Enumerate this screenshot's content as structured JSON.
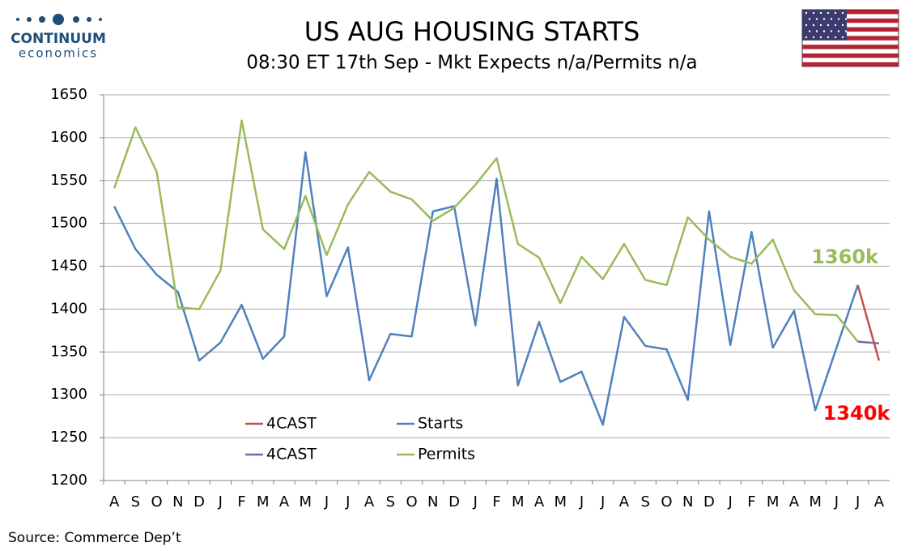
{
  "logo": {
    "name": "CONTINUUM",
    "tagline": "economics"
  },
  "chart_data": {
    "type": "line",
    "title": "US AUG HOUSING STARTS",
    "subtitle": "08:30 ET 17th Sep - Mkt Expects n/a/Permits n/a",
    "source": "Source: Commerce Dep’t",
    "categories": [
      "A",
      "S",
      "O",
      "N",
      "D",
      "J",
      "F",
      "M",
      "A",
      "M",
      "J",
      "J",
      "A",
      "S",
      "O",
      "N",
      "D",
      "J",
      "F",
      "M",
      "A",
      "M",
      "J",
      "J",
      "A",
      "S",
      "O",
      "N",
      "D",
      "J",
      "F",
      "M",
      "A",
      "M",
      "J",
      "J",
      "A"
    ],
    "series": [
      {
        "name": "Starts",
        "color": "#4f81bd",
        "values": [
          1520,
          1470,
          1440,
          1420,
          1340,
          1361,
          1405,
          1342,
          1368,
          1583,
          1415,
          1472,
          1317,
          1371,
          1368,
          1514,
          1520,
          1381,
          1552,
          1311,
          1385,
          1315,
          1327,
          1265,
          1391,
          1357,
          1353,
          1294,
          1514,
          1358,
          1490,
          1355,
          1398,
          1282,
          1355,
          1428,
          null
        ]
      },
      {
        "name": "Permits",
        "color": "#9bbb59",
        "values": [
          1541,
          1612,
          1560,
          1402,
          1400,
          1445,
          1620,
          1493,
          1470,
          1532,
          1463,
          1522,
          1560,
          1537,
          1528,
          1503,
          1518,
          1545,
          1576,
          1476,
          1460,
          1407,
          1461,
          1435,
          1476,
          1434,
          1428,
          1507,
          1481,
          1461,
          1453,
          1481,
          1422,
          1394,
          1393,
          1362,
          null
        ]
      },
      {
        "name": "4CAST",
        "color": "#c0504d",
        "values": [
          null,
          null,
          null,
          null,
          null,
          null,
          null,
          null,
          null,
          null,
          null,
          null,
          null,
          null,
          null,
          null,
          null,
          null,
          null,
          null,
          null,
          null,
          null,
          null,
          null,
          null,
          null,
          null,
          null,
          null,
          null,
          null,
          null,
          null,
          null,
          1428,
          1340
        ]
      },
      {
        "name": "4CAST",
        "color": "#8064a2",
        "values": [
          null,
          null,
          null,
          null,
          null,
          null,
          null,
          null,
          null,
          null,
          null,
          null,
          null,
          null,
          null,
          null,
          null,
          null,
          null,
          null,
          null,
          null,
          null,
          null,
          null,
          null,
          null,
          null,
          null,
          null,
          null,
          null,
          null,
          null,
          null,
          1362,
          1360
        ]
      }
    ],
    "annotations": [
      {
        "text": "1360k",
        "color": "#9bbb59"
      },
      {
        "text": "1340k",
        "color": "#ff0000"
      }
    ],
    "ylim": [
      1200,
      1650
    ],
    "yticks": [
      1200,
      1250,
      1300,
      1350,
      1400,
      1450,
      1500,
      1550,
      1600,
      1650
    ],
    "grid": true
  }
}
